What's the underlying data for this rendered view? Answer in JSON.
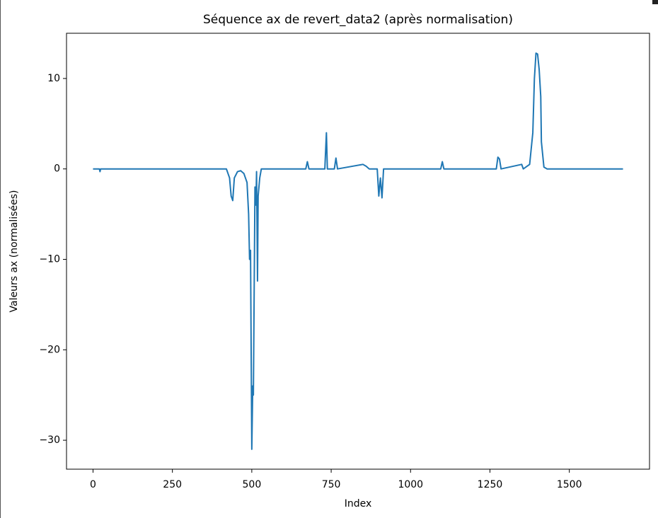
{
  "chart_data": {
    "type": "line",
    "title": "Séquence ax de revert_data2 (après normalisation)",
    "x_label": "Index",
    "y_label": "Valeurs ax (normalisées)",
    "color": "#1f77b4",
    "x": [
      0,
      20,
      22,
      24,
      100,
      200,
      300,
      420,
      430,
      435,
      440,
      445,
      455,
      465,
      475,
      485,
      490,
      493,
      496,
      500,
      503,
      505,
      510,
      513,
      515,
      518,
      520,
      525,
      530,
      600,
      670,
      675,
      680,
      730,
      735,
      738,
      760,
      765,
      770,
      850,
      860,
      870,
      895,
      900,
      905,
      910,
      915,
      990,
      1095,
      1100,
      1105,
      1270,
      1275,
      1280,
      1285,
      1350,
      1355,
      1375,
      1385,
      1390,
      1395,
      1400,
      1405,
      1410,
      1412,
      1420,
      1430,
      1669
    ],
    "values": [
      0,
      0,
      -0.3,
      0,
      0,
      0,
      0,
      0,
      -1,
      -3,
      -3.5,
      -1,
      -0.3,
      -0.2,
      -0.5,
      -1.5,
      -5,
      -10,
      -9,
      -31,
      -24,
      -25,
      -2,
      -4,
      -0.3,
      -12.4,
      -3,
      -1,
      0,
      0,
      0,
      0.8,
      0,
      0,
      4,
      0,
      0,
      1.2,
      0,
      0.5,
      0.3,
      0,
      0,
      -3,
      -1,
      -3.2,
      0,
      0,
      0,
      0.8,
      0,
      0,
      1.3,
      1.1,
      0,
      0.5,
      0,
      0.5,
      4,
      10,
      12.8,
      12.7,
      11,
      8,
      3,
      0.2,
      0,
      0
    ],
    "xlim": [
      -83.5,
      1752.5
    ],
    "ylim": [
      -33.2,
      15.0
    ],
    "xticks": [
      0,
      250,
      500,
      750,
      1000,
      1250,
      1500
    ],
    "yticks": [
      {
        "value": -30,
        "label": "−30"
      },
      {
        "value": -20,
        "label": "−20"
      },
      {
        "value": -10,
        "label": "−10"
      },
      0,
      10
    ]
  }
}
